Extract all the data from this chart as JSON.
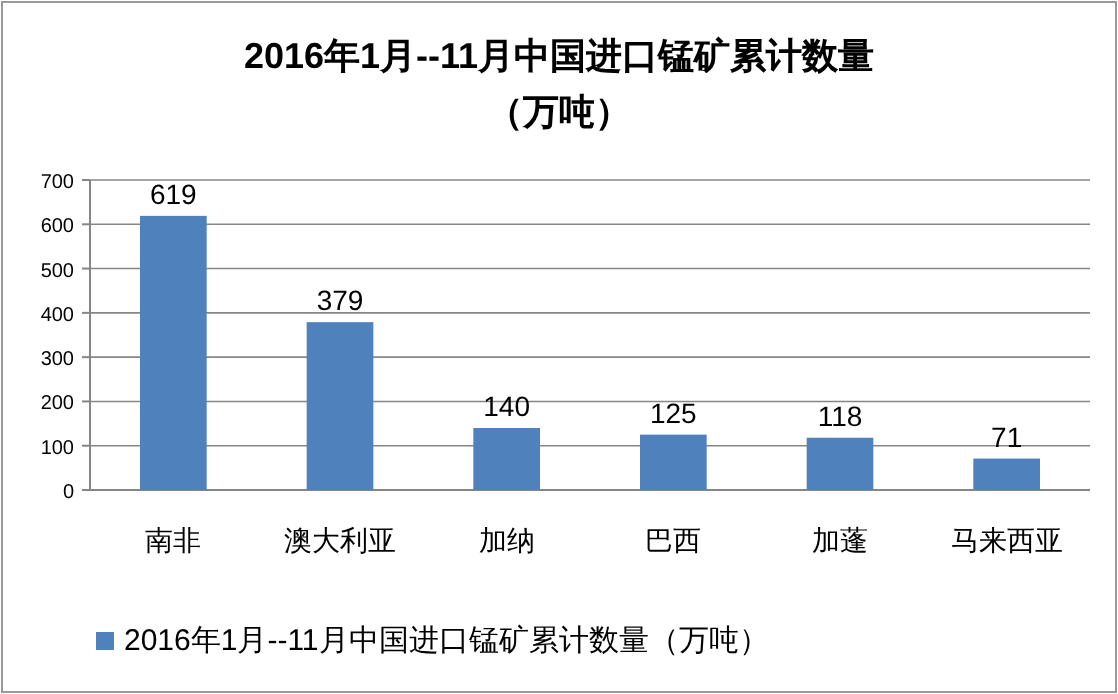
{
  "chart_data": {
    "type": "bar",
    "title": "2016年1月--11月中国进口锰矿累计数量",
    "subtitle": "（万吨）",
    "categories": [
      "南非",
      "澳大利亚",
      "加纳",
      "巴西",
      "加蓬",
      "马来西亚"
    ],
    "series": [
      {
        "name": "2016年1月--11月中国进口锰矿累计数量（万吨）",
        "color": "#4f81bd",
        "values": [
          619,
          379,
          140,
          125,
          118,
          71
        ]
      }
    ],
    "ylim": [
      0,
      700
    ],
    "yticks": [
      0,
      100,
      200,
      300,
      400,
      500,
      600,
      700
    ],
    "grid": "y",
    "data_labels": true,
    "legend": "bottom"
  }
}
